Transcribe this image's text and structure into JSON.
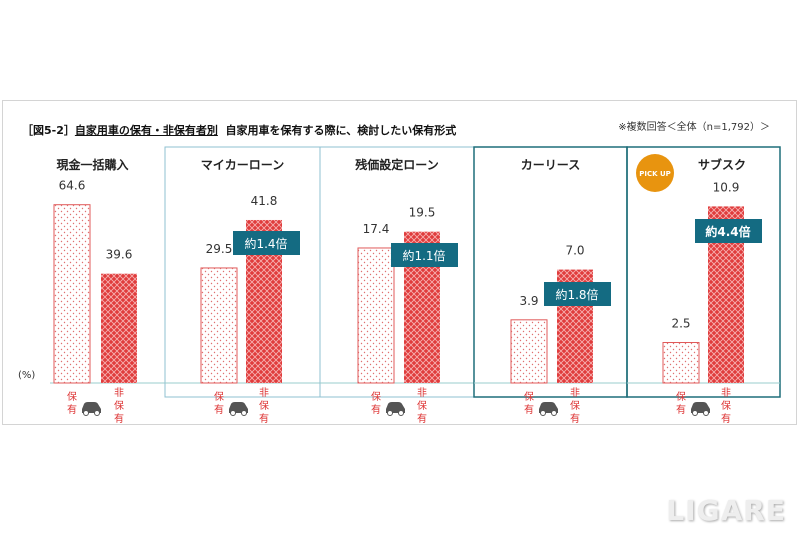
{
  "title": {
    "label": "［図5-2］",
    "underlined": "自家用車の保有・非保有者別",
    "rest": "自家用車を保有する際に、検討したい保有形式"
  },
  "note": "※複数回答＜全体（n=1,792）＞",
  "unit": "(%)",
  "pick_up": "PICK UP",
  "logo": "LIGARE",
  "legend": {
    "hold": "保有",
    "nonhold": "非保有",
    "icon": "car-icon"
  },
  "colors": {
    "red": "#e03c3c",
    "teal": "#146b82",
    "panel_border_light": "#8fc0d2",
    "panel_border_dark": "#1e6e7a",
    "pickup": "#e8940f"
  },
  "chart_data": {
    "type": "bar",
    "categories": [
      "現金一括購入",
      "マイカーローン",
      "残価設定ローン",
      "カーリース",
      "サブスク"
    ],
    "series": [
      {
        "name": "保有",
        "values": [
          64.6,
          29.5,
          17.4,
          3.9,
          2.5
        ]
      },
      {
        "name": "非保有",
        "values": [
          39.6,
          41.8,
          19.5,
          7.0,
          10.9
        ]
      }
    ],
    "multipliers": [
      "",
      "約1.4倍",
      "約1.1倍",
      "約1.8倍",
      "約4.4倍"
    ],
    "ylabel": "(%)"
  }
}
